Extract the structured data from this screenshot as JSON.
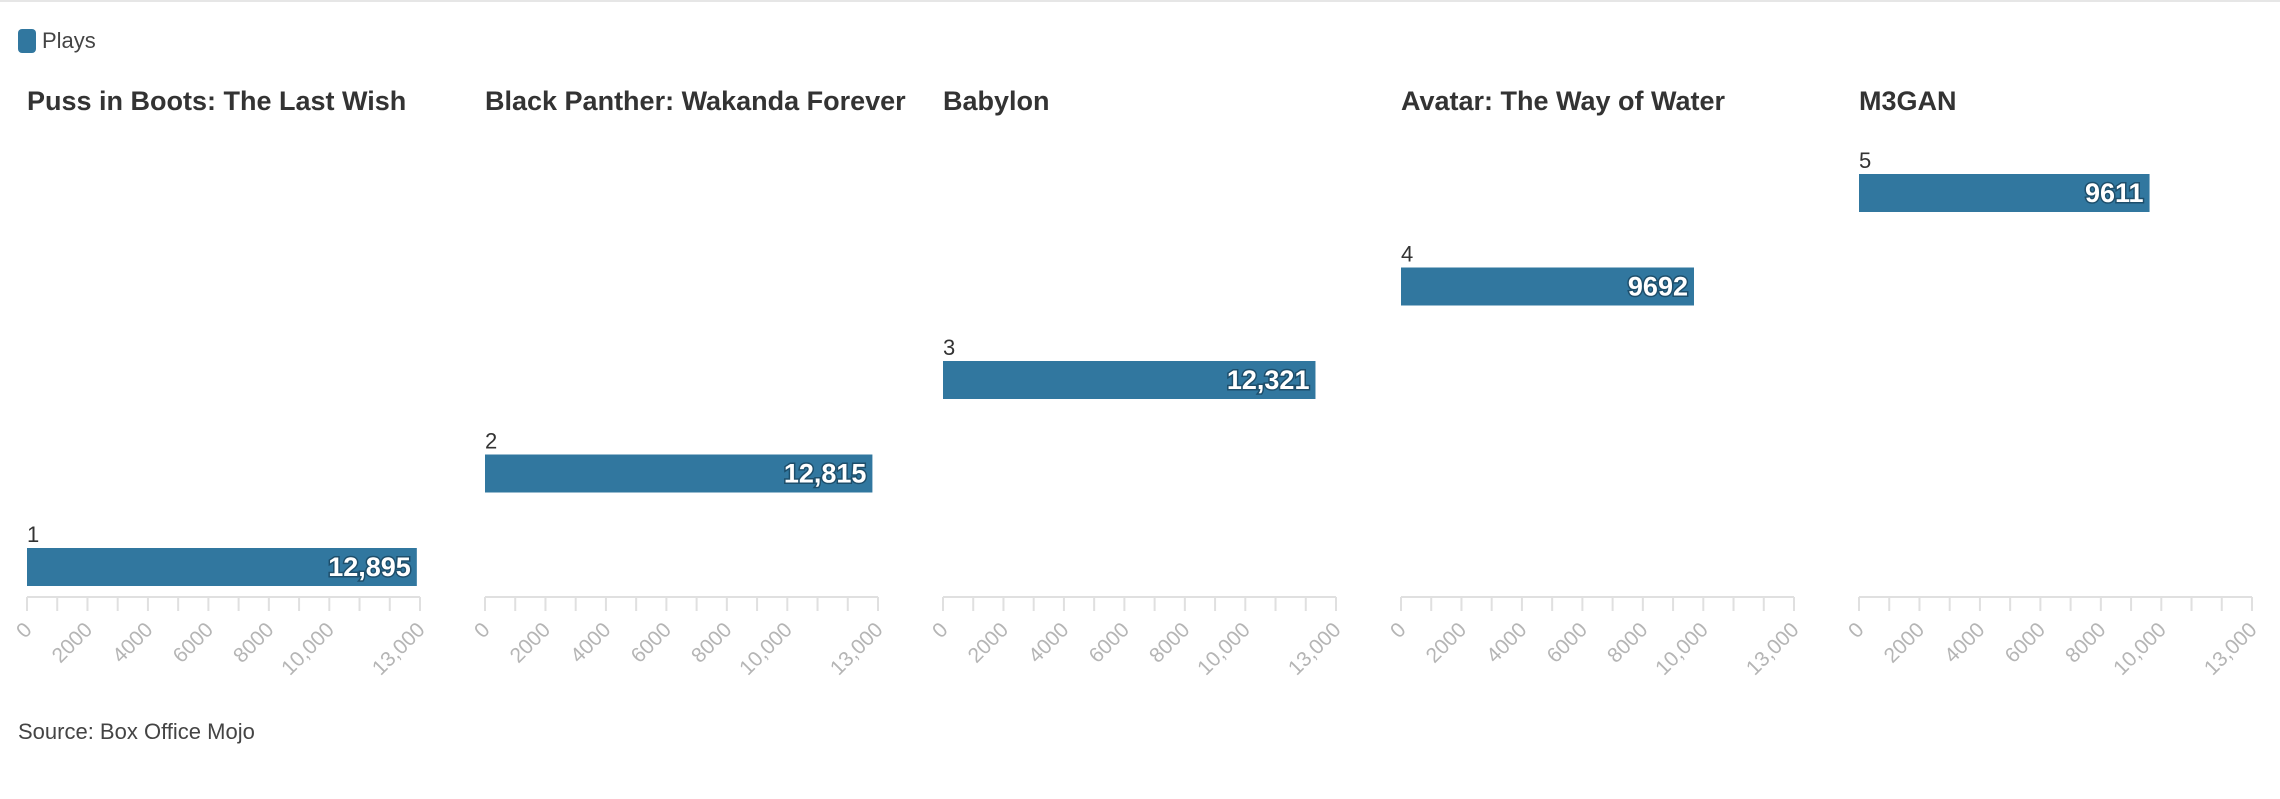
{
  "legend": {
    "label": "Plays",
    "color": "#31779f"
  },
  "source": "Source: Box Office Mojo",
  "chart_data": {
    "type": "bar",
    "layout": "small-multiples",
    "series_name": "Plays",
    "bar_color": "#31779f",
    "xlim": [
      0,
      13000
    ],
    "x_ticks": [
      0,
      2000,
      4000,
      6000,
      8000,
      10000,
      13000
    ],
    "x_tick_labels": [
      "0",
      "2000",
      "4000",
      "6000",
      "8000",
      "10,000",
      "13,000"
    ],
    "panels": [
      {
        "title": "Puss in Boots: The Last Wish",
        "rank": "1",
        "value": 12895,
        "value_label": "12,895"
      },
      {
        "title": "Black Panther: Wakanda Forever",
        "rank": "2",
        "value": 12815,
        "value_label": "12,815"
      },
      {
        "title": "Babylon",
        "rank": "3",
        "value": 12321,
        "value_label": "12,321"
      },
      {
        "title": "Avatar: The Way of Water",
        "rank": "4",
        "value": 9692,
        "value_label": "9692"
      },
      {
        "title": "M3GAN",
        "rank": "5",
        "value": 9611,
        "value_label": "9611"
      }
    ]
  }
}
